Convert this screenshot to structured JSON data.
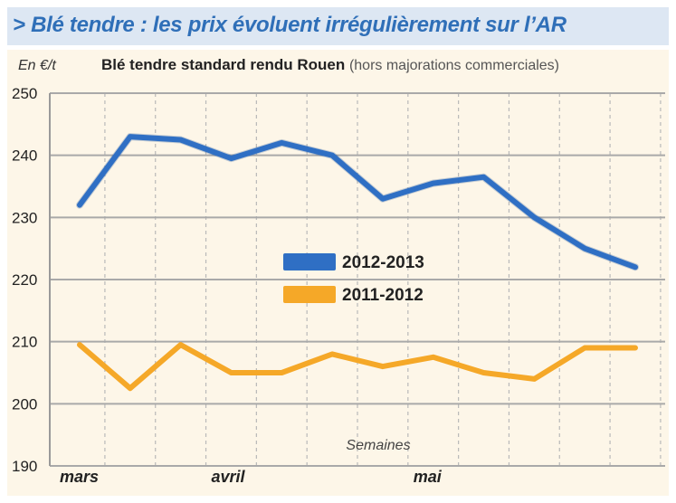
{
  "header": {
    "title": "> Blé tendre : les prix évoluent irrégulièrement sur l’AR"
  },
  "chart_data": {
    "type": "line",
    "title": "Blé tendre standard rendu Rouen",
    "subtitle": "(hors majorations commerciales)",
    "ylabel": "En €/t",
    "xlabel": "Semaines",
    "ylim": [
      190,
      250
    ],
    "yticks": [
      190,
      200,
      210,
      220,
      230,
      240,
      250
    ],
    "month_labels": [
      {
        "label": "mars",
        "week": 0
      },
      {
        "label": "avril",
        "week": 3
      },
      {
        "label": "mai",
        "week": 7
      }
    ],
    "x": [
      0,
      1,
      2,
      3,
      4,
      5,
      6,
      7,
      8,
      9,
      10,
      11
    ],
    "grid": true,
    "legend_position": "center",
    "series": [
      {
        "name": "2012-2013",
        "color": "#2f6fc4",
        "values": [
          232,
          243,
          242.5,
          239.5,
          242,
          240,
          233,
          235.5,
          236.5,
          230,
          225,
          222
        ]
      },
      {
        "name": "2011-2012",
        "color": "#f5a828",
        "values": [
          209.5,
          202.5,
          209.5,
          205,
          205,
          208,
          206,
          207.5,
          205,
          204,
          209,
          209
        ]
      }
    ]
  }
}
